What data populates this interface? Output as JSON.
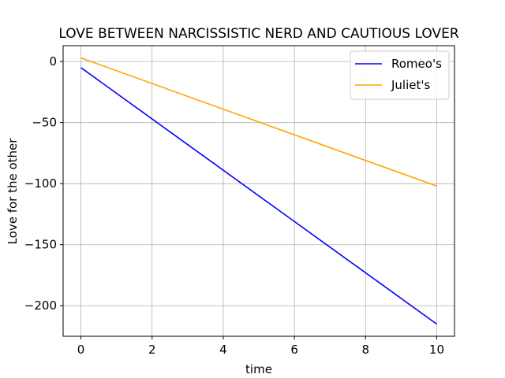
{
  "chart_data": {
    "type": "line",
    "title": "LOVE BETWEEN NARCISSISTIC NERD AND CAUTIOUS LOVER",
    "xlabel": "time",
    "ylabel": "Love for the other",
    "xlim": [
      -0.5,
      10.5
    ],
    "ylim": [
      -225,
      13
    ],
    "xticks": [
      0,
      2,
      4,
      6,
      8,
      10
    ],
    "xtick_labels": [
      "0",
      "2",
      "4",
      "6",
      "8",
      "10"
    ],
    "yticks": [
      0,
      -50,
      -100,
      -150,
      -200
    ],
    "ytick_labels": [
      "0",
      "−50",
      "−100",
      "−150",
      "−200"
    ],
    "grid": true,
    "legend_position": "top-right",
    "series": [
      {
        "name": "Romeo's",
        "color": "#0000ff",
        "x": [
          0,
          10
        ],
        "y": [
          -5,
          -215
        ]
      },
      {
        "name": "Juliet's",
        "color": "#ffa500",
        "x": [
          0,
          10
        ],
        "y": [
          3,
          -102
        ]
      }
    ]
  }
}
